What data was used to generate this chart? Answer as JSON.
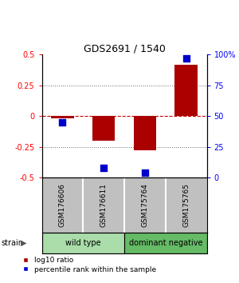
{
  "title": "GDS2691 / 1540",
  "samples": [
    "GSM176606",
    "GSM176611",
    "GSM175764",
    "GSM175765"
  ],
  "log10_ratios": [
    -0.02,
    -0.2,
    -0.28,
    0.42
  ],
  "percentile_ranks": [
    45,
    8,
    4,
    97
  ],
  "groups": [
    {
      "label": "wild type",
      "samples": [
        0,
        1
      ],
      "color": "#aaddaa"
    },
    {
      "label": "dominant negative",
      "samples": [
        2,
        3
      ],
      "color": "#66bb66"
    }
  ],
  "bar_color": "#AA0000",
  "dot_color": "#0000CC",
  "ylim_left": [
    -0.5,
    0.5
  ],
  "ylim_right": [
    0,
    100
  ],
  "yticks_left": [
    -0.5,
    -0.25,
    0,
    0.25,
    0.5
  ],
  "yticks_right": [
    0,
    25,
    50,
    75,
    100
  ],
  "ytick_labels_left": [
    "-0.5",
    "-0.25",
    "0",
    "0.25",
    "0.5"
  ],
  "ytick_labels_right": [
    "0",
    "25",
    "50",
    "75",
    "100%"
  ],
  "hline_color": "#CC0000",
  "dot_hline_color": "#CC0000",
  "grid_color": "#666666",
  "bar_width": 0.55,
  "strain_label": "strain",
  "legend_red_label": "log10 ratio",
  "legend_blue_label": "percentile rank within the sample",
  "sample_label_bg": "#C0C0C0",
  "sample_divider_color": "white"
}
